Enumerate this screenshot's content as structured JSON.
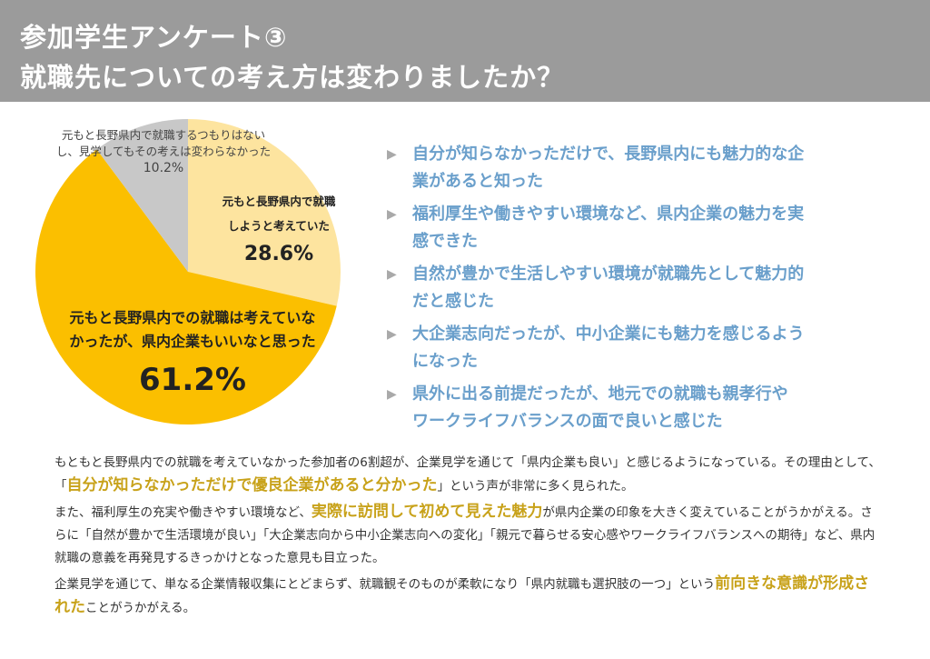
{
  "header": {
    "line1": "参加学生アンケート③",
    "line2": "就職先についての考え方は変わりましたか？"
  },
  "chart_data": {
    "type": "pie",
    "start_angle_deg": 0,
    "direction": "clockwise",
    "slices": [
      {
        "label_line1": "元もと長野県内で就職",
        "label_line2": "しようと考えていた",
        "value": 28.6,
        "value_text": "28.6%",
        "color": "#fde49f"
      },
      {
        "label_line1": "元もと長野県内での就職は考えていな",
        "label_line2": "かったが、県内企業もいいなと思った",
        "value": 61.2,
        "value_text": "61.2%",
        "color": "#fbbf00"
      },
      {
        "label_line1": "元もと長野県内で就職するつもりはない",
        "label_line2": "し、見学してもその考えは変わらなかった",
        "value": 10.2,
        "value_text": "10.2%",
        "color": "#c8c8c8"
      }
    ]
  },
  "reasons": [
    {
      "line1": "自分が知らなかっただけで、長野県内にも魅力的な企",
      "line2": "業があると知った"
    },
    {
      "line1": "福利厚生や働きやすい環境など、県内企業の魅力を実",
      "line2": "感できた"
    },
    {
      "line1": " 自然が豊かで生活しやすい環境が就職先として魅力的",
      "line2": "だと感じた"
    },
    {
      "line1": "大企業志向だったが、中小企業にも魅力を感じるよう",
      "line2": "になった"
    },
    {
      "line1": "県外に出る前提だったが、地元での就職も親孝行や",
      "line2": "ワークライフバランスの面で良いと感じた"
    }
  ],
  "bullet_marker": "▶",
  "body": {
    "p1_a": "もともと長野県内での就職を考えていなかった参加者の6割超が、企業見学を通じて「県内企業も良い」と感じるようになっている。その理由として、「",
    "p1_hl": "自分が知らなかっただけで優良企業があると分かった",
    "p1_b": "」という声が非常に多く見られた。",
    "p2_a": "また、福利厚生の充実や働きやすい環境など、",
    "p2_hl": "実際に訪問して初めて見えた魅力",
    "p2_b": "が県内企業の印象を大きく変えていることがうかがえる。さらに「自然が豊かで生活環境が良い」「大企業志向から中小企業志向への変化」「親元で暮らせる安心感やワークライフバランスへの期待」など、県内就職の意義を再発見するきっかけとなった意見も目立った。",
    "p3_a": "企業見学を通じて、単なる企業情報収集にとどまらず、就職観そのものが柔軟になり「県内就職も選択肢の一つ」という",
    "p3_hl": "前向きな意識が形成された",
    "p3_b": "ことがうかがえる。"
  }
}
